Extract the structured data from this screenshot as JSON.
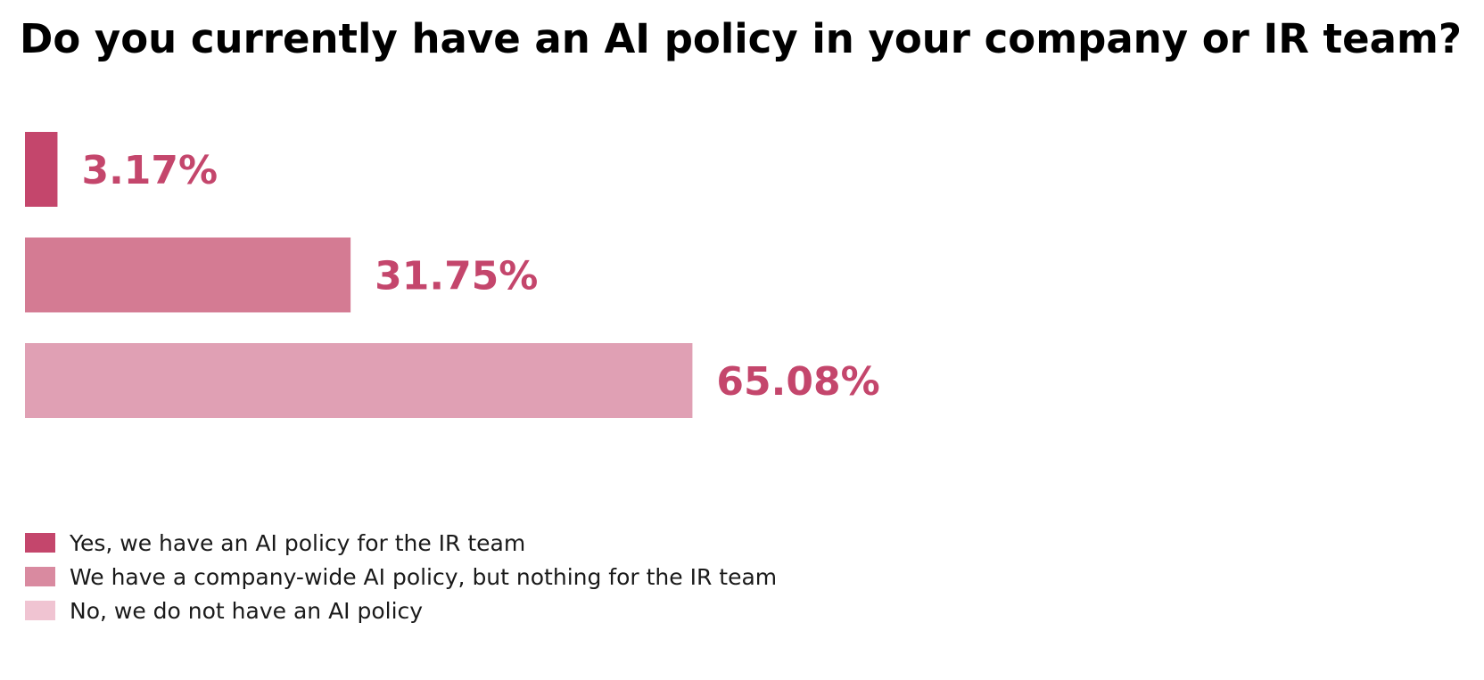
{
  "chart_data": {
    "type": "bar",
    "orientation": "horizontal",
    "title": "Do you currently have an AI policy in your company or IR team?",
    "categories": [
      "Yes, we have an AI policy for the IR team",
      "We have a company-wide AI policy, but nothing for the IR team",
      "No, we do not have an AI policy"
    ],
    "values": [
      3.17,
      31.75,
      65.08
    ],
    "value_labels": [
      "3.17%",
      "31.75%",
      "65.08%"
    ],
    "unit": "%",
    "colors": [
      "#c4466c",
      "#d47b93",
      "#e0a0b4"
    ],
    "legend_colors": [
      "#c4466c",
      "#d98aa0",
      "#f0c4d2"
    ],
    "label_color": "#c4466c",
    "grid": false,
    "axes_visible": false,
    "legend_position": "bottom-left"
  }
}
